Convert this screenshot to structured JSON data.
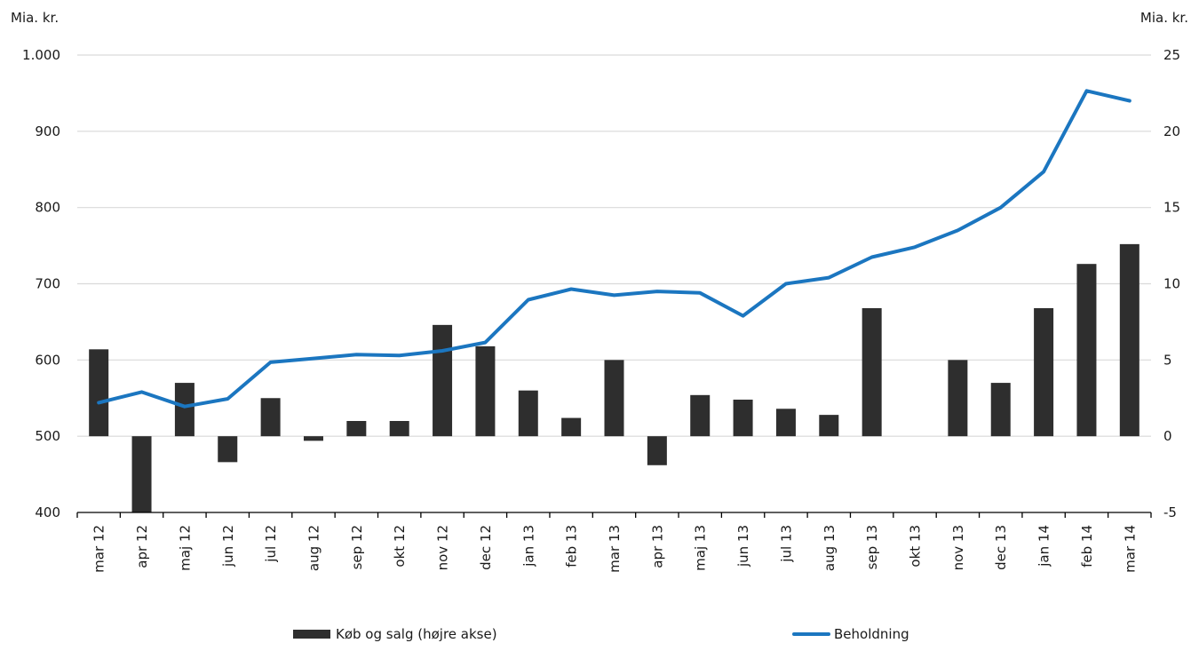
{
  "chart_data": {
    "type": "combo",
    "title": "",
    "categories": [
      "mar 12",
      "apr 12",
      "maj 12",
      "jun 12",
      "jul 12",
      "aug 12",
      "sep 12",
      "okt 12",
      "nov 12",
      "dec 12",
      "jan 13",
      "feb 13",
      "mar 13",
      "apr 13",
      "maj 13",
      "jun 13",
      "jul 13",
      "aug 13",
      "sep 13",
      "okt 13",
      "nov 13",
      "dec 13",
      "jan 14",
      "feb 14",
      "mar 14"
    ],
    "series": [
      {
        "name": "Køb og salg (højre akse)",
        "type": "bar",
        "axis": "right",
        "color": "#2e2e2e",
        "values": [
          5.7,
          -5,
          3.5,
          -1.7,
          2.5,
          -0.3,
          1.0,
          1.0,
          7.3,
          5.9,
          3.0,
          1.2,
          5.0,
          -1.9,
          2.7,
          2.4,
          1.8,
          1.4,
          8.4,
          0,
          5.0,
          3.5,
          8.4,
          11.3,
          12.6
        ]
      },
      {
        "name": "Beholdning",
        "type": "line",
        "axis": "left",
        "color": "#1b76c0",
        "values": [
          544,
          558,
          539,
          549,
          597,
          602,
          607,
          606,
          612,
          623,
          679,
          693,
          685,
          690,
          688,
          658,
          700,
          708,
          735,
          748,
          770,
          800,
          847,
          953,
          940
        ]
      }
    ],
    "left_axis": {
      "title": "Mia. kr.",
      "min": 400,
      "max": 1000,
      "step": 100,
      "tick_labels": [
        "1.000",
        "900",
        "800",
        "700",
        "600",
        "500",
        "400"
      ]
    },
    "right_axis": {
      "title": "Mia. kr.",
      "min": -5,
      "max": 25,
      "step": 5,
      "tick_labels": [
        "25",
        "20",
        "15",
        "10",
        "5",
        "0",
        "-5"
      ]
    },
    "grid": true,
    "legend_position": "bottom",
    "colors": {
      "gridline": "#d9d9d9",
      "axis": "#000000",
      "text": "#1a1a1a"
    }
  }
}
